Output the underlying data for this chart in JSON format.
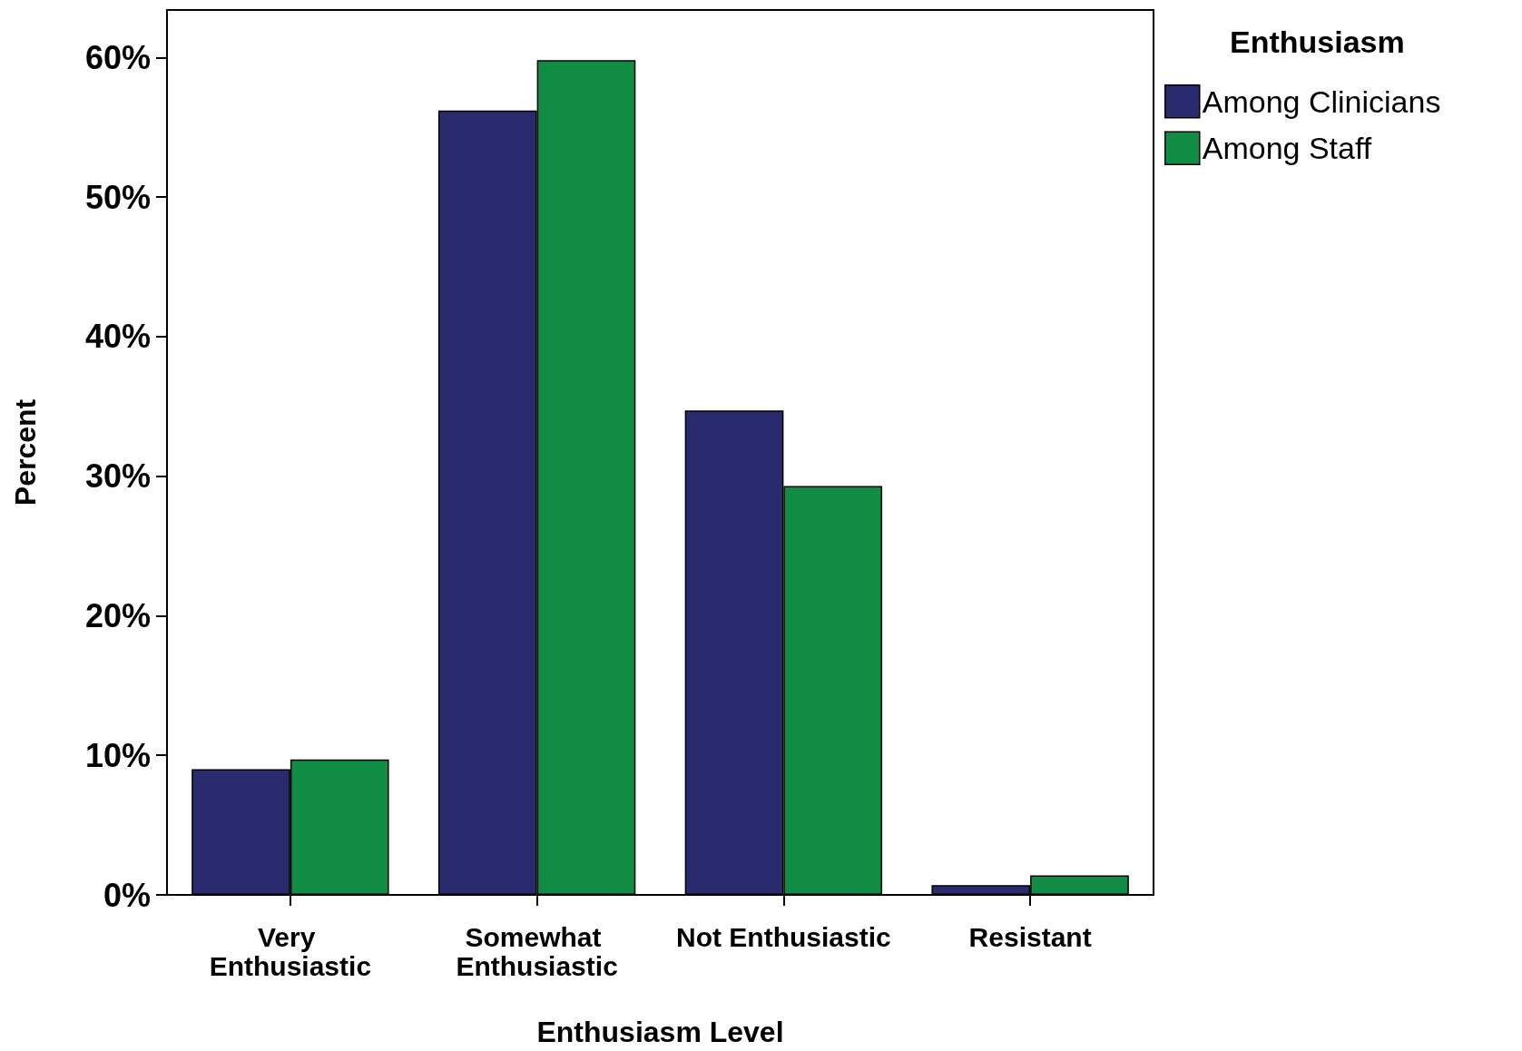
{
  "chart_data": {
    "type": "bar",
    "xlabel": "Enthusiasm Level",
    "ylabel": "Percent",
    "legend_title": "Enthusiasm",
    "categories": [
      "Very Enthusiastic",
      "Somewhat Enthusiastic",
      "Not Enthusiastic",
      "Resistant"
    ],
    "series": [
      {
        "name": "Among Clinicians",
        "color": "#2a2a6e",
        "values": [
          9.0,
          56.2,
          34.7,
          0.7
        ]
      },
      {
        "name": "Among Staff",
        "color": "#118c44",
        "values": [
          9.7,
          59.8,
          29.3,
          1.4
        ]
      }
    ],
    "ylim": [
      0,
      63.4
    ],
    "yticks": [
      {
        "value": 0,
        "label": "0%"
      },
      {
        "value": 10,
        "label": "10%"
      },
      {
        "value": 20,
        "label": "20%"
      },
      {
        "value": 30,
        "label": "30%"
      },
      {
        "value": 40,
        "label": "40%"
      },
      {
        "value": 50,
        "label": "50%"
      },
      {
        "value": 60,
        "label": "60%"
      }
    ],
    "grid": false,
    "legend": "top right"
  }
}
